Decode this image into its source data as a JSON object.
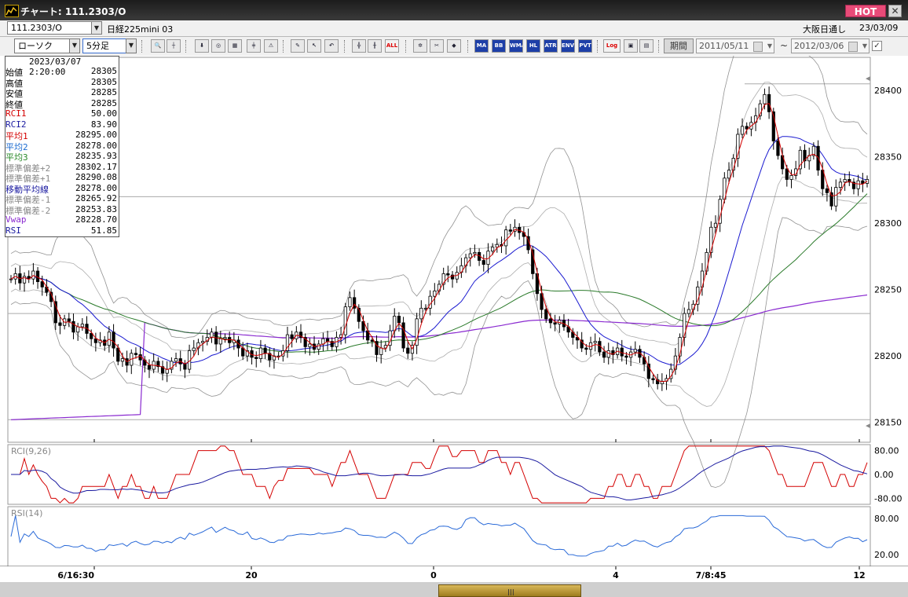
{
  "window": {
    "title": "チャート: 111.2303/O",
    "hot_label": "HOT",
    "close_label": "✕"
  },
  "header": {
    "symbol": "111.2303/O",
    "instrument": "日経225mini 03",
    "market": "大阪日通し",
    "date": "23/03/09"
  },
  "toolbar": {
    "chart_type": "ローソク",
    "interval": "5分足",
    "buttons": [
      "MA",
      "BB",
      "WMA",
      "HL",
      "ATR",
      "ENV",
      "PVT"
    ],
    "all_label": "ALL",
    "log_label": "Log",
    "period_label": "期間",
    "start_date": "2011/05/11",
    "end_date": "2012/03/06",
    "range_sep": "~"
  },
  "info": {
    "timestamp": "2023/03/07 2:20:00",
    "rows": [
      {
        "label": "始値",
        "value": "28305",
        "color": "#000000"
      },
      {
        "label": "高値",
        "value": "28305",
        "color": "#000000"
      },
      {
        "label": "安値",
        "value": "28285",
        "color": "#000000"
      },
      {
        "label": "終値",
        "value": "28285",
        "color": "#000000"
      },
      {
        "label": "RCI1",
        "value": "50.00",
        "color": "#d40000"
      },
      {
        "label": "RCI2",
        "value": "83.90",
        "color": "#1a1aa0"
      },
      {
        "label": "平均1",
        "value": "28295.00",
        "color": "#d40000"
      },
      {
        "label": "平均2",
        "value": "28278.00",
        "color": "#1a6ad0"
      },
      {
        "label": "平均3",
        "value": "28235.93",
        "color": "#2a8a2a"
      },
      {
        "label": "標準偏差+2",
        "value": "28302.17",
        "color": "#888888"
      },
      {
        "label": "標準偏差+1",
        "value": "28290.08",
        "color": "#888888"
      },
      {
        "label": "移動平均線",
        "value": "28278.00",
        "color": "#1a1aa0"
      },
      {
        "label": "標準偏差-1",
        "value": "28265.92",
        "color": "#888888"
      },
      {
        "label": "標準偏差-2",
        "value": "28253.83",
        "color": "#888888"
      },
      {
        "label": "Vwap",
        "value": "28228.70",
        "color": "#8a2ad0"
      },
      {
        "label": "RSI",
        "value": "51.85",
        "color": "#1a1aa0"
      }
    ]
  },
  "chart": {
    "price_ticks": [
      "28400",
      "28350",
      "28300",
      "28250",
      "28200",
      "28150"
    ],
    "rci_label": "RCI(9,26)",
    "rci_ticks": [
      "80.00",
      "0.00",
      "-80.00"
    ],
    "rsi_label": "RSI(14)",
    "rsi_ticks": [
      "80.00",
      "20.00"
    ],
    "x_ticks": [
      "6/16:30",
      "20",
      "0",
      "4",
      "7/8:45",
      "12"
    ],
    "colors": {
      "avg1": "#d40000",
      "avg2": "#1a1ad0",
      "avg3": "#2a7a2a",
      "vwap": "#8a2ad0",
      "band": "#777777",
      "rsi": "#2a6ad8",
      "rci1": "#d40000",
      "rci2": "#1a1aa0"
    }
  },
  "chart_data": {
    "type": "line",
    "price_axis": {
      "ylim": [
        28135,
        28425
      ]
    },
    "candles_close": [
      28258,
      28262,
      28255,
      28260,
      28258,
      28264,
      28256,
      28252,
      28248,
      28241,
      28225,
      28223,
      28228,
      28226,
      28218,
      28222,
      28224,
      28217,
      28213,
      28210,
      28212,
      28208,
      28218,
      28206,
      28196,
      28198,
      28193,
      28202,
      28201,
      28197,
      28193,
      28190,
      28196,
      28192,
      28187,
      28190,
      28196,
      28198,
      28194,
      28190,
      28204,
      28206,
      28210,
      28211,
      28214,
      28218,
      28209,
      28213,
      28214,
      28210,
      28212,
      28206,
      28200,
      28204,
      28199,
      28198,
      28206,
      28202,
      28197,
      28200,
      28200,
      28204,
      28216,
      28213,
      28218,
      28214,
      28207,
      28209,
      28205,
      28209,
      28213,
      28211,
      28207,
      28214,
      28216,
      28237,
      28244,
      28236,
      28226,
      28219,
      28212,
      28211,
      28201,
      28206,
      28208,
      28219,
      28230,
      28225,
      28206,
      28202,
      28208,
      28228,
      28236,
      28236,
      28245,
      28249,
      28254,
      28262,
      28261,
      28258,
      28263,
      28268,
      28274,
      28277,
      28278,
      28272,
      28269,
      28279,
      28282,
      28284,
      28283,
      28295,
      28294,
      28297,
      28293,
      28290,
      28280,
      28262,
      28247,
      28235,
      28228,
      28225,
      28224,
      28227,
      28222,
      28218,
      28214,
      28212,
      28206,
      28205,
      28210,
      28211,
      28203,
      28199,
      28204,
      28201,
      28206,
      28200,
      28199,
      28203,
      28205,
      28199,
      28194,
      28183,
      28182,
      28179,
      28181,
      28183,
      28190,
      28200,
      28214,
      28232,
      28235,
      28239,
      28252,
      28264,
      28278,
      28297,
      28300,
      28318,
      28334,
      28340,
      28349,
      28367,
      28373,
      28371,
      28376,
      28381,
      28390,
      28397,
      28384,
      28362,
      28351,
      28341,
      28333,
      28336,
      28341,
      28355,
      28347,
      28351,
      28358,
      28340,
      28326,
      28323,
      28313,
      28327,
      28331,
      28333,
      28331,
      28326,
      28332,
      28330,
      28333
    ],
    "rsi": {
      "ylim": [
        0,
        100
      ]
    },
    "rci": {
      "ylim": [
        -100,
        100
      ]
    }
  }
}
